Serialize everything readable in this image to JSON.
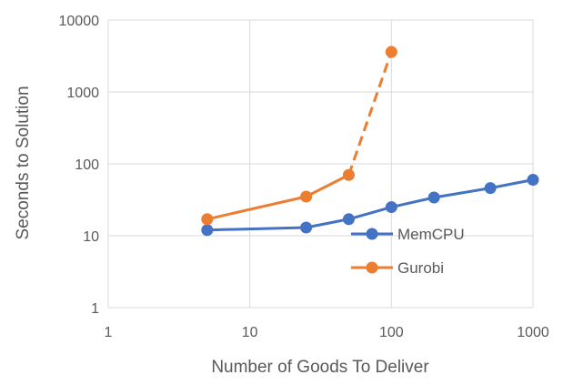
{
  "chart_data": {
    "type": "line",
    "xlabel": "Number of Goods To Deliver",
    "ylabel": "Seconds to Solution",
    "xscale": "log",
    "yscale": "log",
    "xlim": [
      1,
      1000
    ],
    "ylim": [
      1,
      10000
    ],
    "x_ticks": [
      1,
      10,
      100,
      1000
    ],
    "y_ticks": [
      1,
      10,
      100,
      1000,
      10000
    ],
    "x_tick_labels": [
      "1",
      "10",
      "100",
      "1000"
    ],
    "y_tick_labels": [
      "1",
      "10",
      "100",
      "1000",
      "10000"
    ],
    "grid": true,
    "legend_position": "lower-right, inside plot",
    "series": [
      {
        "name": "MemCPU",
        "color": "#4472c4",
        "line_style": "solid",
        "marker": "circle",
        "x": [
          5,
          25,
          50,
          100,
          200,
          500,
          1000
        ],
        "y": [
          12,
          13,
          17,
          25,
          34,
          46,
          60
        ]
      },
      {
        "name": "Gurobi",
        "color": "#ed7d31",
        "line_style": "solid, last segment dashed",
        "marker": "circle",
        "x": [
          5,
          25,
          50,
          100
        ],
        "y": [
          17,
          35,
          70,
          3600
        ]
      }
    ]
  }
}
